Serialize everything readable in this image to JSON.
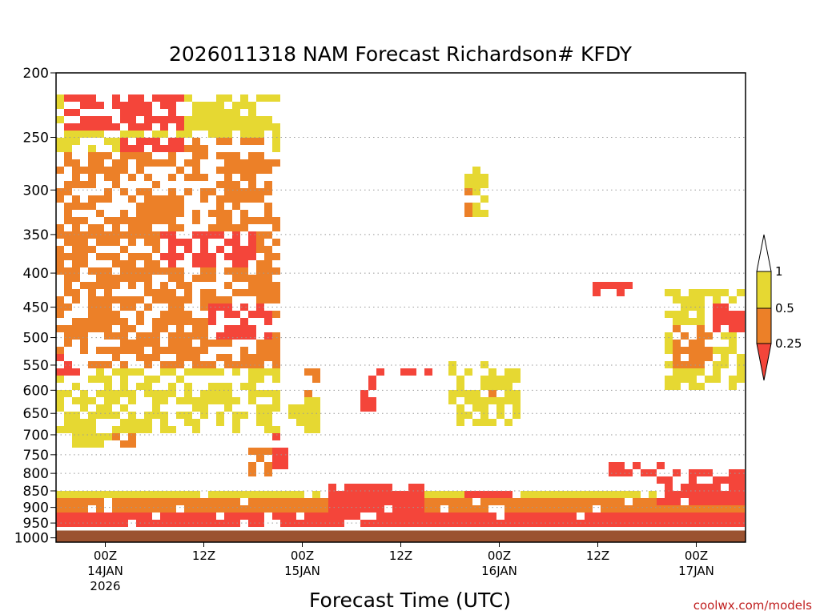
{
  "chart_data": {
    "type": "heatmap",
    "title": "2026011318 NAM Forecast Richardson# KFDY",
    "xlabel": "Forecast Time (UTC)",
    "ylabel": "",
    "credit": "coolwx.com/models",
    "y_axis": {
      "scale": "log-pressure (hPa), inverted",
      "ylim": [
        1000,
        200
      ],
      "tick_labels": [
        "200",
        "250",
        "300",
        "350",
        "400",
        "450",
        "500",
        "550",
        "600",
        "650",
        "700",
        "750",
        "800",
        "850",
        "900",
        "950",
        "1000"
      ],
      "tick_values": [
        200,
        250,
        300,
        350,
        400,
        450,
        500,
        550,
        600,
        650,
        700,
        750,
        800,
        850,
        900,
        950,
        1000
      ]
    },
    "x_axis": {
      "unit": "forecast hours from 2026011318",
      "xlim": [
        0,
        84
      ],
      "ticks": [
        {
          "hour": 6,
          "label": "00Z",
          "date": "14JAN",
          "year": "2026"
        },
        {
          "hour": 18,
          "label": "12Z",
          "date": "",
          "year": ""
        },
        {
          "hour": 30,
          "label": "00Z",
          "date": "15JAN",
          "year": ""
        },
        {
          "hour": 42,
          "label": "12Z",
          "date": "",
          "year": ""
        },
        {
          "hour": 54,
          "label": "00Z",
          "date": "16JAN",
          "year": ""
        },
        {
          "hour": 66,
          "label": "12Z",
          "date": "",
          "year": ""
        },
        {
          "hour": 78,
          "label": "00Z",
          "date": "17JAN",
          "year": ""
        }
      ]
    },
    "grid": "dotted horizontal lines at pressure ticks",
    "legend": {
      "placement": "right",
      "entries": [
        {
          "label": "1",
          "color": "#ffffff",
          "range": "> 1"
        },
        {
          "label": "0.5",
          "color": "#e6d832",
          "range": "0.5 - 1"
        },
        {
          "label": "0.25",
          "color": "#ec8028",
          "range": "0.25 - 0.5"
        },
        {
          "label": "",
          "color": "#f4453a",
          "range": "< 0.25"
        }
      ]
    },
    "colors": {
      "yellow": "#e6d832",
      "orange": "#ec8028",
      "red": "#f4453a",
      "ground": "#9b5230"
    },
    "ground_below_hpa": 975,
    "regions": [
      {
        "class": "yellow",
        "x": [
          0,
          27
        ],
        "p": [
          215,
          700
        ]
      },
      {
        "class": "orange",
        "x": [
          0,
          27
        ],
        "p": [
          260,
          560
        ]
      },
      {
        "class": "red",
        "x": [
          1,
          16
        ],
        "p": [
          218,
          245
        ]
      },
      {
        "class": "red",
        "x": [
          8,
          16
        ],
        "p": [
          250,
          265
        ]
      },
      {
        "class": "orange",
        "x": [
          16,
          25
        ],
        "p": [
          250,
          290
        ]
      },
      {
        "class": "yellow",
        "x": [
          16,
          26
        ],
        "p": [
          240,
          290
        ]
      },
      {
        "class": "red",
        "x": [
          13,
          24
        ],
        "p": [
          350,
          395
        ]
      },
      {
        "class": "red",
        "x": [
          19,
          26
        ],
        "p": [
          440,
          500
        ]
      },
      {
        "class": "red",
        "x": [
          0,
          4
        ],
        "p": [
          530,
          570
        ]
      },
      {
        "class": "yellow",
        "x": [
          2,
          11
        ],
        "p": [
          680,
          730
        ]
      },
      {
        "class": "orange",
        "x": [
          7,
          11
        ],
        "p": [
          700,
          730
        ]
      },
      {
        "class": "yellow",
        "x": [
          50,
          53
        ],
        "p": [
          275,
          330
        ]
      },
      {
        "class": "orange",
        "x": [
          50,
          51
        ],
        "p": [
          300,
          340
        ]
      },
      {
        "class": "red",
        "x": [
          39,
          46
        ],
        "p": [
          555,
          575
        ]
      },
      {
        "class": "red",
        "x": [
          37,
          39
        ],
        "p": [
          575,
          640
        ]
      },
      {
        "class": "yellow",
        "x": [
          48,
          57
        ],
        "p": [
          540,
          680
        ]
      },
      {
        "class": "orange",
        "x": [
          53,
          55
        ],
        "p": [
          600,
          620
        ]
      },
      {
        "class": "red",
        "x": [
          65,
          70
        ],
        "p": [
          410,
          435
        ]
      },
      {
        "class": "yellow",
        "x": [
          74,
          84
        ],
        "p": [
          420,
          600
        ]
      },
      {
        "class": "orange",
        "x": [
          75,
          80
        ],
        "p": [
          480,
          560
        ]
      },
      {
        "class": "red",
        "x": [
          80,
          84
        ],
        "p": [
          440,
          490
        ]
      },
      {
        "class": "red",
        "x": [
          26,
          28
        ],
        "p": [
          700,
          780
        ]
      },
      {
        "class": "orange",
        "x": [
          23,
          26
        ],
        "p": [
          740,
          800
        ]
      },
      {
        "class": "yellow",
        "x": [
          28,
          32
        ],
        "p": [
          600,
          700
        ]
      },
      {
        "class": "orange",
        "x": [
          30,
          32
        ],
        "p": [
          550,
          620
        ]
      },
      {
        "class": "red",
        "x": [
          0,
          84
        ],
        "p": [
          905,
          975
        ]
      },
      {
        "class": "orange",
        "x": [
          0,
          84
        ],
        "p": [
          880,
          905
        ]
      },
      {
        "class": "yellow",
        "x": [
          0,
          84
        ],
        "p": [
          860,
          880
        ]
      },
      {
        "class": "red",
        "x": [
          33,
          45
        ],
        "p": [
          830,
          905
        ]
      },
      {
        "class": "red",
        "x": [
          50,
          57
        ],
        "p": [
          840,
          880
        ]
      },
      {
        "class": "red",
        "x": [
          73,
          84
        ],
        "p": [
          780,
          900
        ]
      },
      {
        "class": "red",
        "x": [
          67,
          75
        ],
        "p": [
          760,
          800
        ]
      }
    ]
  }
}
